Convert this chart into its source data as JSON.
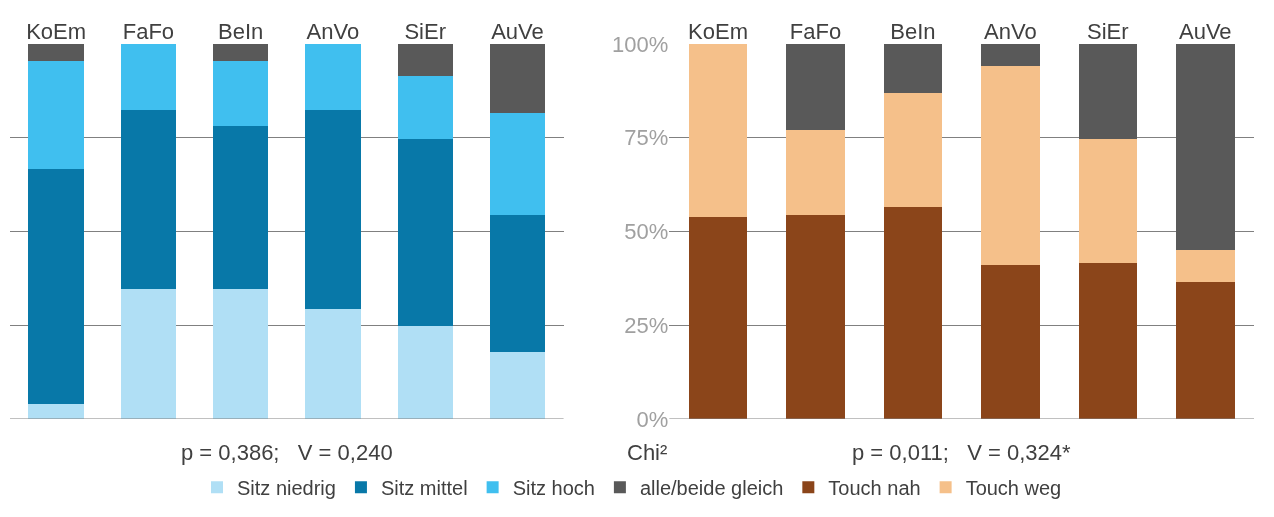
{
  "chart_data": [
    {
      "type": "bar",
      "stacked": true,
      "categories": [
        "KoEm",
        "FaFo",
        "BeIn",
        "AnVo",
        "SiEr",
        "AuVe"
      ],
      "ylim": [
        0,
        100
      ],
      "yticks": [
        {
          "value": 0,
          "label": null
        },
        {
          "value": 25,
          "label": null
        },
        {
          "value": 50,
          "label": null
        },
        {
          "value": 75,
          "label": null
        },
        {
          "value": 100,
          "label": null
        }
      ],
      "tick_labels": "x",
      "grid": "y",
      "legend": "bottom",
      "annotations": [
        "p = 0,386;   V = 0,240"
      ],
      "series": [
        {
          "name": "Sitz niedrig",
          "color": "#b0dff5",
          "values": [
            4.1,
            34.7,
            34.7,
            29.3,
            24.9,
            18
          ]
        },
        {
          "name": "Sitz mittel",
          "color": "#0878a8",
          "values": [
            62.5,
            47.8,
            43.4,
            53,
            49.9,
            36.5
          ]
        },
        {
          "name": "Sitz hoch",
          "color": "#40bfef",
          "values": [
            29,
            17.5,
            17.3,
            17.7,
            16.7,
            27
          ]
        },
        {
          "name": "alle/beide gleich",
          "color": "#595959",
          "values": [
            4.4,
            0,
            4.6,
            0,
            8.5,
            18.5
          ]
        }
      ]
    },
    {
      "type": "bar",
      "stacked": true,
      "categories": [
        "KoEm",
        "FaFo",
        "BeIn",
        "AnVo",
        "SiEr",
        "AuVe"
      ],
      "ylim": [
        0,
        100
      ],
      "yticks": [
        {
          "value": 0,
          "label": "0%"
        },
        {
          "value": 25,
          "label": "25%"
        },
        {
          "value": 50,
          "label": "50%"
        },
        {
          "value": 75,
          "label": "75%"
        },
        {
          "value": 100,
          "label": "100%"
        }
      ],
      "grid": "y",
      "legend": "bottom",
      "annotations": [
        "Chi²",
        "p = 0,011;   V = 0,324*"
      ],
      "series": [
        {
          "name": "Touch nah",
          "color": "#8b451a",
          "values": [
            54,
            54.5,
            56.6,
            41.1,
            41.6,
            36.5
          ]
        },
        {
          "name": "Touch weg",
          "color": "#f5c08a",
          "values": [
            46,
            22.6,
            30.3,
            53,
            33.2,
            8.7
          ]
        },
        {
          "color": "#595959",
          "values": [
            0,
            22.9,
            13.1,
            5.9,
            25.2,
            54.8
          ]
        }
      ]
    }
  ]
}
